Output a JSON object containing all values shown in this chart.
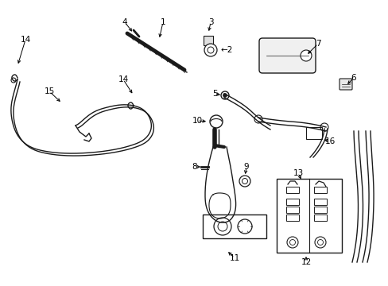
{
  "background_color": "#ffffff",
  "lc": "#1a1a1a",
  "figsize": [
    4.89,
    3.6
  ],
  "dpi": 100,
  "xlim": [
    0,
    489
  ],
  "ylim": [
    0,
    360
  ]
}
